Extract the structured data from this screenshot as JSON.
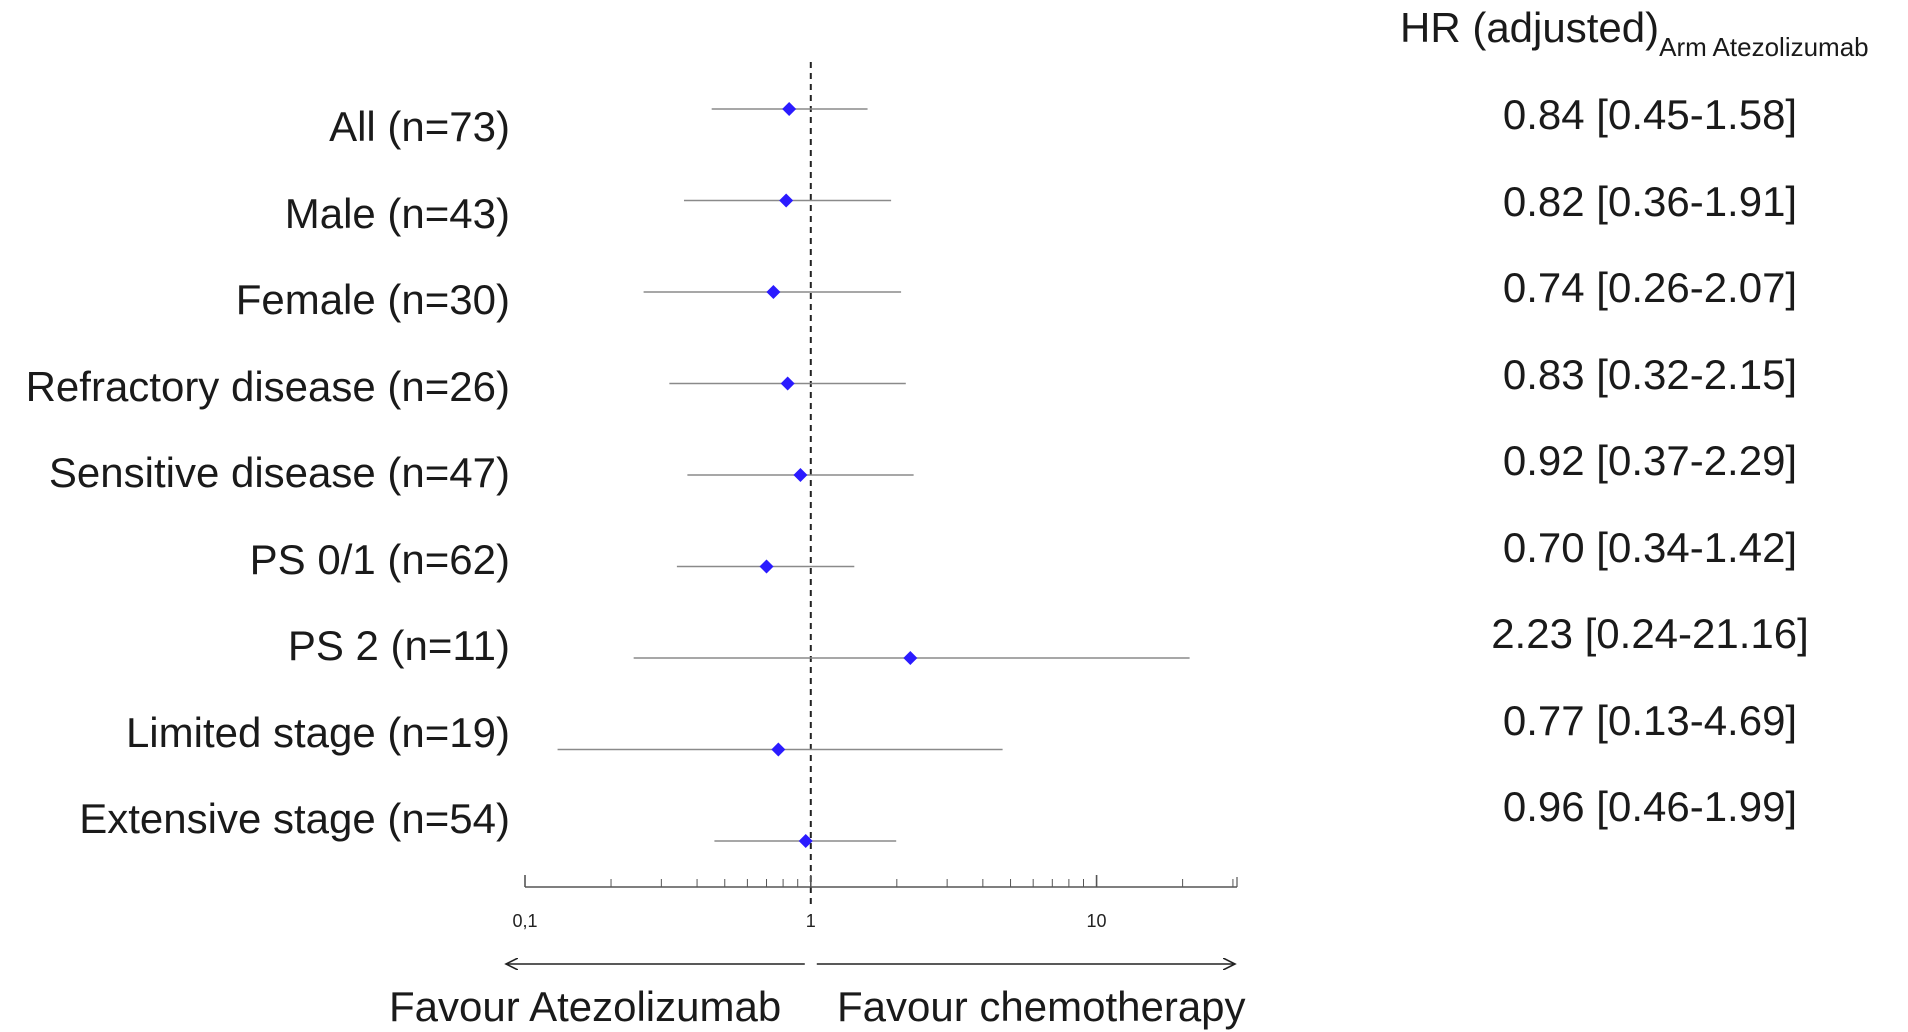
{
  "chart_data": {
    "type": "forest",
    "x_scale": "log",
    "xlim": [
      0.1,
      31
    ],
    "x_ticks": [
      {
        "value": 0.1,
        "label": "0,1"
      },
      {
        "value": 1,
        "label": "1"
      },
      {
        "value": 10,
        "label": "10"
      }
    ],
    "reference_line": 1,
    "header": {
      "main": "HR (adjusted)",
      "sub": "Arm Atezolizumab"
    },
    "favour_left": "Favour Atezolizumab",
    "favour_right": "Favour chemotherapy",
    "point_color": "#2b1bff",
    "rows": [
      {
        "label": "All (n=73)",
        "hr": 0.84,
        "lo": 0.45,
        "hi": 1.58,
        "text": "0.84 [0.45-1.58]"
      },
      {
        "label": "Male (n=43)",
        "hr": 0.82,
        "lo": 0.36,
        "hi": 1.91,
        "text": "0.82 [0.36-1.91]"
      },
      {
        "label": "Female (n=30)",
        "hr": 0.74,
        "lo": 0.26,
        "hi": 2.07,
        "text": "0.74 [0.26-2.07]"
      },
      {
        "label": "Refractory disease (n=26)",
        "hr": 0.83,
        "lo": 0.32,
        "hi": 2.15,
        "text": "0.83 [0.32-2.15]"
      },
      {
        "label": "Sensitive disease (n=47)",
        "hr": 0.92,
        "lo": 0.37,
        "hi": 2.29,
        "text": "0.92 [0.37-2.29]"
      },
      {
        "label": "PS 0/1 (n=62)",
        "hr": 0.7,
        "lo": 0.34,
        "hi": 1.42,
        "text": "0.70 [0.34-1.42]"
      },
      {
        "label": "PS 2 (n=11)",
        "hr": 2.23,
        "lo": 0.24,
        "hi": 21.16,
        "text": "2.23 [0.24-21.16]"
      },
      {
        "label": "Limited stage (n=19)",
        "hr": 0.77,
        "lo": 0.13,
        "hi": 4.69,
        "text": "0.77 [0.13-4.69]"
      },
      {
        "label": "Extensive stage (n=54)",
        "hr": 0.96,
        "lo": 0.46,
        "hi": 1.99,
        "text": "0.96 [0.46-1.99]"
      }
    ]
  }
}
